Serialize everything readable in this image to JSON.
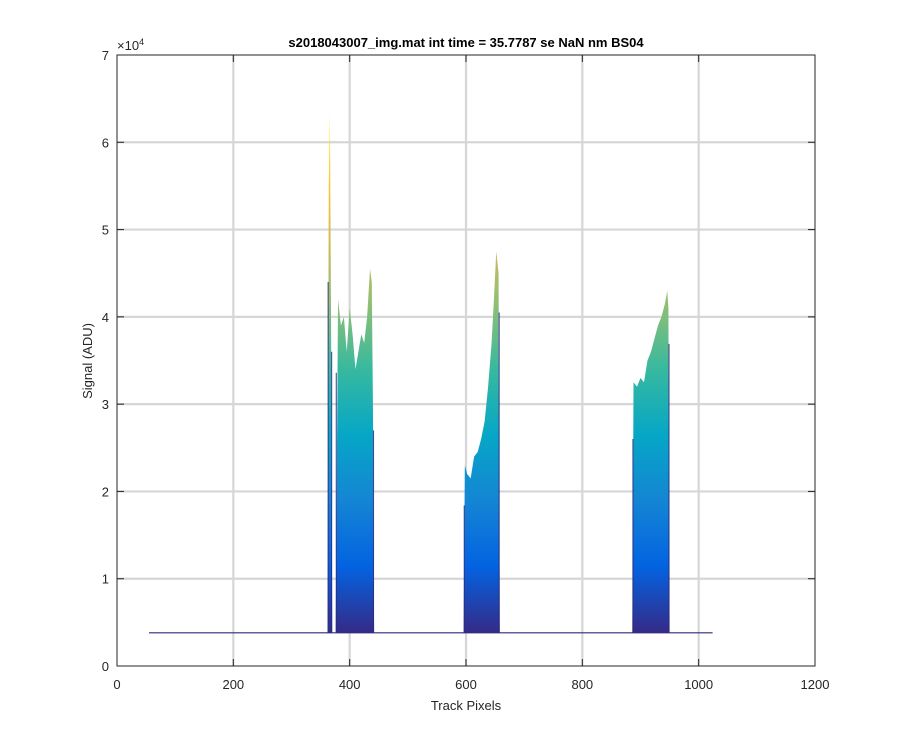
{
  "chart_data": {
    "type": "area",
    "title": "s2018043007_img.mat int time = 35.7787 se  NaN nm BS04",
    "xlabel": "Track Pixels",
    "ylabel": "Signal (ADU)",
    "xlim": [
      0,
      1200
    ],
    "ylim": [
      0,
      70000
    ],
    "x_ticks": [
      0,
      200,
      400,
      600,
      800,
      1000,
      1200
    ],
    "y_ticks": [
      0,
      1,
      2,
      3,
      4,
      5,
      6,
      7
    ],
    "y_exponent": "×10",
    "y_exponent_power": "4",
    "grid": true,
    "baseline": 3800,
    "x_range": [
      55,
      1024
    ],
    "colormap": [
      "#352a87",
      "#0363e1",
      "#1485d4",
      "#06a7c6",
      "#38b99e",
      "#92bf73",
      "#d9ba56",
      "#fcce2e",
      "#f9fb0e"
    ],
    "line_color": "#2c2c7e",
    "segments": [
      {
        "x": [
          362,
          364,
          366,
          368,
          370
        ],
        "y": [
          3800,
          55000,
          63500,
          40000,
          3800
        ]
      },
      {
        "x": [
          376,
          380,
          385,
          390,
          395,
          400,
          405,
          410,
          415,
          420,
          425,
          430,
          435,
          438,
          440,
          442
        ],
        "y": [
          3800,
          42000,
          39000,
          40000,
          36000,
          41000,
          38000,
          34000,
          36000,
          38000,
          37000,
          40000,
          45500,
          44000,
          30000,
          3800
        ]
      },
      {
        "x": [
          596,
          598,
          602,
          608,
          614,
          620,
          626,
          632,
          638,
          644,
          648,
          652,
          656,
          658
        ],
        "y": [
          3800,
          23000,
          22000,
          21500,
          24000,
          24500,
          26000,
          28000,
          32000,
          37000,
          42000,
          47500,
          45000,
          3800
        ]
      },
      {
        "x": [
          886,
          888,
          894,
          900,
          906,
          912,
          918,
          924,
          930,
          936,
          942,
          946,
          948,
          950
        ],
        "y": [
          3800,
          32500,
          32000,
          33000,
          32500,
          35000,
          36000,
          37500,
          39000,
          40000,
          41500,
          43000,
          41000,
          3800
        ]
      }
    ]
  }
}
